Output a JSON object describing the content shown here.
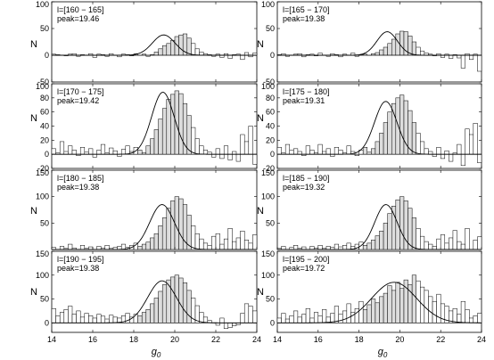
{
  "figure": {
    "ylabel": "N",
    "xlabel_main": "g",
    "xlabel_sub": "0"
  },
  "chart_data": [
    {
      "type": "bar",
      "subplot": "1",
      "annotation_range": "l=[160 − 165]",
      "annotation_peak": "peak=19.46",
      "xlim": [
        14,
        24
      ],
      "ylim": [
        -50,
        100
      ],
      "yticks": [
        -50,
        0,
        50,
        100
      ],
      "ytick_labels": [
        "-50",
        "0",
        "50",
        "100"
      ],
      "xticks": [
        14,
        16,
        18,
        20,
        22,
        24
      ],
      "xtick_labels": [],
      "bin_start": 14,
      "bin_width": 0.2,
      "values": [
        2,
        1,
        0,
        -1,
        2,
        3,
        -2,
        1,
        0,
        3,
        -4,
        2,
        1,
        -2,
        3,
        0,
        -3,
        2,
        1,
        -1,
        3,
        0,
        2,
        -2,
        1,
        6,
        12,
        18,
        22,
        28,
        35,
        38,
        40,
        32,
        22,
        12,
        6,
        3,
        1,
        -2,
        2,
        -4,
        3,
        -6,
        1,
        2,
        -8,
        5,
        -3,
        4
      ],
      "fit": {
        "peak": 19.46,
        "amplitude": 38,
        "sigma": 0.55
      }
    },
    {
      "type": "bar",
      "subplot": "2",
      "annotation_range": "l=[165 − 170]",
      "annotation_peak": "peak=19.38",
      "xlim": [
        14,
        24
      ],
      "ylim": [
        -50,
        100
      ],
      "yticks": [
        -50,
        0,
        50,
        100
      ],
      "ytick_labels": [
        "-50",
        "0",
        "50",
        "100"
      ],
      "xticks": [
        14,
        16,
        18,
        20,
        22,
        24
      ],
      "xtick_labels": [],
      "bin_start": 14,
      "bin_width": 0.2,
      "values": [
        1,
        3,
        -2,
        0,
        2,
        3,
        -3,
        1,
        2,
        -1,
        4,
        0,
        -2,
        3,
        1,
        -3,
        2,
        0,
        4,
        -2,
        1,
        2,
        0,
        3,
        5,
        10,
        15,
        22,
        30,
        40,
        45,
        44,
        36,
        25,
        15,
        8,
        4,
        2,
        -1,
        3,
        -4,
        2,
        -6,
        1,
        -5,
        -24,
        3,
        -8,
        2,
        -30
      ],
      "fit": {
        "peak": 19.38,
        "amplitude": 44,
        "sigma": 0.5
      }
    },
    {
      "type": "bar",
      "subplot": "3",
      "annotation_range": "l=[170 − 175]",
      "annotation_peak": "peak=19.42",
      "xlim": [
        14,
        24
      ],
      "ylim": [
        -20,
        100
      ],
      "yticks": [
        -20,
        0,
        20,
        40,
        60,
        80,
        100
      ],
      "ytick_labels": [
        "-20",
        "0",
        "20",
        "40",
        "60",
        "80",
        "100"
      ],
      "xticks": [
        14,
        16,
        18,
        20,
        22,
        24
      ],
      "xtick_labels": [],
      "bin_start": 14,
      "bin_width": 0.2,
      "values": [
        8,
        2,
        18,
        4,
        12,
        6,
        -2,
        10,
        3,
        8,
        -4,
        6,
        14,
        2,
        9,
        5,
        -3,
        7,
        12,
        4,
        10,
        6,
        2,
        12,
        22,
        35,
        50,
        65,
        78,
        85,
        90,
        86,
        72,
        55,
        38,
        22,
        12,
        6,
        3,
        -4,
        8,
        -6,
        12,
        -8,
        4,
        -10,
        28,
        18,
        40,
        -14
      ],
      "fit": {
        "peak": 19.42,
        "amplitude": 88,
        "sigma": 0.55
      }
    },
    {
      "type": "bar",
      "subplot": "4",
      "annotation_range": "l=[175 − 180]",
      "annotation_peak": "peak=19.31",
      "xlim": [
        14,
        24
      ],
      "ylim": [
        -20,
        100
      ],
      "yticks": [
        -20,
        0,
        20,
        40,
        60,
        80,
        100
      ],
      "ytick_labels": [
        "-20",
        "0",
        "20",
        "40",
        "60",
        "80",
        "100"
      ],
      "xticks": [
        14,
        16,
        18,
        20,
        22,
        24
      ],
      "xtick_labels": [],
      "bin_start": 14,
      "bin_width": 0.2,
      "values": [
        10,
        2,
        14,
        6,
        8,
        4,
        -2,
        12,
        6,
        2,
        14,
        4,
        8,
        -3,
        10,
        6,
        2,
        12,
        4,
        -2,
        6,
        10,
        3,
        8,
        18,
        30,
        45,
        60,
        72,
        80,
        84,
        76,
        62,
        45,
        30,
        18,
        8,
        4,
        -3,
        10,
        -6,
        5,
        -10,
        2,
        14,
        -16,
        36,
        28,
        44,
        -12
      ],
      "fit": {
        "peak": 19.31,
        "amplitude": 75,
        "sigma": 0.55
      }
    },
    {
      "type": "bar",
      "subplot": "5",
      "annotation_range": "l=[180 − 185]",
      "annotation_peak": "peak=19.38",
      "xlim": [
        14,
        24
      ],
      "ylim": [
        0,
        150
      ],
      "yticks": [
        50,
        100,
        150
      ],
      "ytick_labels": [
        "50",
        "100",
        "150"
      ],
      "xticks": [
        14,
        16,
        18,
        20,
        22,
        24
      ],
      "xtick_labels": [],
      "bin_start": 14,
      "bin_width": 0.2,
      "values": [
        4,
        0,
        6,
        2,
        10,
        3,
        0,
        8,
        2,
        5,
        0,
        6,
        3,
        8,
        2,
        4,
        6,
        10,
        4,
        8,
        12,
        6,
        10,
        14,
        22,
        30,
        45,
        60,
        78,
        92,
        100,
        96,
        85,
        65,
        45,
        30,
        20,
        12,
        8,
        25,
        30,
        10,
        20,
        40,
        15,
        22,
        35,
        18,
        12,
        28
      ],
      "fit": {
        "peak": 19.38,
        "amplitude": 85,
        "sigma": 0.6
      }
    },
    {
      "type": "bar",
      "subplot": "6",
      "annotation_range": "l=[185 − 190]",
      "annotation_peak": "peak=19.32",
      "xlim": [
        14,
        24
      ],
      "ylim": [
        0,
        150
      ],
      "yticks": [
        50,
        100,
        150
      ],
      "ytick_labels": [
        "50",
        "100",
        "150"
      ],
      "xticks": [
        14,
        16,
        18,
        20,
        22,
        24
      ],
      "xtick_labels": [],
      "bin_start": 14,
      "bin_width": 0.2,
      "values": [
        2,
        6,
        0,
        4,
        8,
        2,
        5,
        0,
        6,
        3,
        8,
        2,
        6,
        4,
        10,
        5,
        8,
        12,
        6,
        10,
        14,
        8,
        12,
        18,
        26,
        35,
        50,
        68,
        82,
        94,
        100,
        92,
        78,
        60,
        40,
        25,
        15,
        10,
        6,
        20,
        28,
        12,
        22,
        36,
        15,
        10,
        40,
        -12,
        18,
        24
      ],
      "fit": {
        "peak": 19.32,
        "amplitude": 85,
        "sigma": 0.55
      }
    },
    {
      "type": "bar",
      "subplot": "7",
      "annotation_range": "l=[190 − 195]",
      "annotation_peak": "peak=19.38",
      "xlim": [
        14,
        24
      ],
      "ylim": [
        -20,
        150
      ],
      "yticks": [
        0,
        50,
        100,
        150
      ],
      "ytick_labels": [
        "0",
        "50",
        "100",
        "150"
      ],
      "xticks": [
        14,
        16,
        18,
        20,
        22,
        24
      ],
      "xtick_labels": [
        "14",
        "16",
        "18",
        "20",
        "22",
        "24"
      ],
      "bin_start": 14,
      "bin_width": 0.2,
      "values": [
        30,
        15,
        22,
        28,
        35,
        18,
        25,
        12,
        20,
        15,
        10,
        18,
        14,
        8,
        16,
        12,
        10,
        15,
        20,
        12,
        18,
        15,
        22,
        28,
        40,
        52,
        66,
        80,
        90,
        96,
        100,
        94,
        84,
        68,
        52,
        36,
        22,
        12,
        5,
        0,
        -5,
        10,
        -12,
        -10,
        -6,
        -4,
        20,
        40,
        35,
        25
      ],
      "fit": {
        "peak": 19.38,
        "amplitude": 88,
        "sigma": 0.7
      }
    },
    {
      "type": "bar",
      "subplot": "8",
      "annotation_range": "l=[195 − 200]",
      "annotation_peak": "peak=19.72",
      "xlim": [
        14,
        24
      ],
      "ylim": [
        -20,
        150
      ],
      "yticks": [
        0,
        50,
        100,
        150
      ],
      "ytick_labels": [
        "0",
        "50",
        "100",
        "150"
      ],
      "xticks": [
        14,
        16,
        18,
        20,
        22,
        24
      ],
      "xtick_labels": [
        "14",
        "16",
        "18",
        "20",
        "22",
        "24"
      ],
      "bin_start": 14,
      "bin_width": 0.2,
      "values": [
        10,
        20,
        8,
        15,
        25,
        12,
        18,
        30,
        10,
        22,
        15,
        28,
        12,
        20,
        35,
        18,
        25,
        40,
        22,
        30,
        45,
        28,
        38,
        50,
        42,
        55,
        62,
        78,
        68,
        85,
        72,
        90,
        80,
        100,
        88,
        75,
        68,
        55,
        45,
        60,
        40,
        35,
        25,
        30,
        18,
        45,
        28,
        10,
        15,
        20
      ],
      "fit": {
        "peak": 19.72,
        "amplitude": 85,
        "sigma": 1.1
      }
    }
  ]
}
